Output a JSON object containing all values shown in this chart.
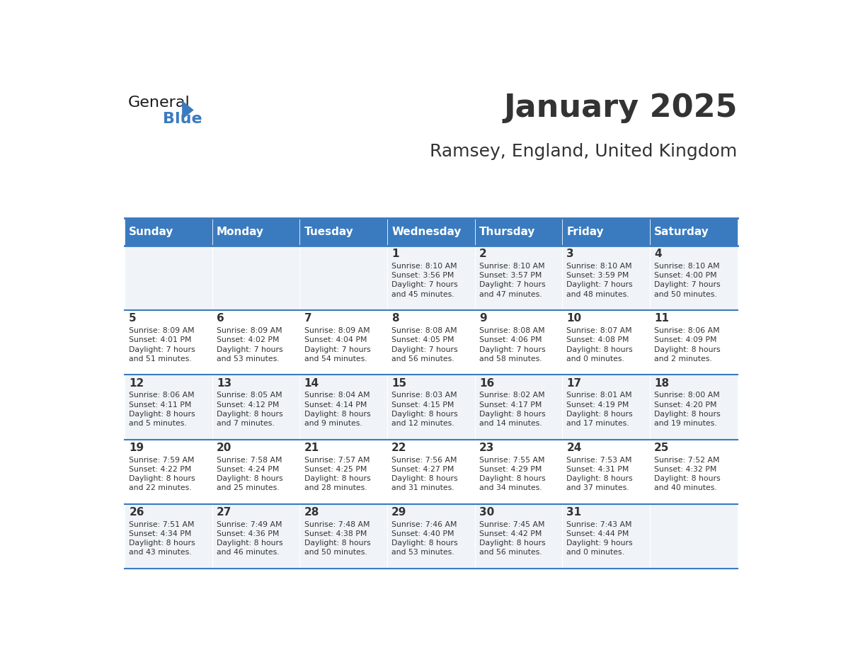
{
  "title": "January 2025",
  "subtitle": "Ramsey, England, United Kingdom",
  "header_color": "#3a7bbf",
  "header_text_color": "#ffffff",
  "cell_bg_color": "#f0f4f8",
  "alt_cell_bg_color": "#ffffff",
  "border_color": "#3a7bbf",
  "text_color": "#333333",
  "days_of_week": [
    "Sunday",
    "Monday",
    "Tuesday",
    "Wednesday",
    "Thursday",
    "Friday",
    "Saturday"
  ],
  "calendar_data": [
    [
      {
        "day": null,
        "info": null
      },
      {
        "day": null,
        "info": null
      },
      {
        "day": null,
        "info": null
      },
      {
        "day": "1",
        "info": "Sunrise: 8:10 AM\nSunset: 3:56 PM\nDaylight: 7 hours\nand 45 minutes."
      },
      {
        "day": "2",
        "info": "Sunrise: 8:10 AM\nSunset: 3:57 PM\nDaylight: 7 hours\nand 47 minutes."
      },
      {
        "day": "3",
        "info": "Sunrise: 8:10 AM\nSunset: 3:59 PM\nDaylight: 7 hours\nand 48 minutes."
      },
      {
        "day": "4",
        "info": "Sunrise: 8:10 AM\nSunset: 4:00 PM\nDaylight: 7 hours\nand 50 minutes."
      }
    ],
    [
      {
        "day": "5",
        "info": "Sunrise: 8:09 AM\nSunset: 4:01 PM\nDaylight: 7 hours\nand 51 minutes."
      },
      {
        "day": "6",
        "info": "Sunrise: 8:09 AM\nSunset: 4:02 PM\nDaylight: 7 hours\nand 53 minutes."
      },
      {
        "day": "7",
        "info": "Sunrise: 8:09 AM\nSunset: 4:04 PM\nDaylight: 7 hours\nand 54 minutes."
      },
      {
        "day": "8",
        "info": "Sunrise: 8:08 AM\nSunset: 4:05 PM\nDaylight: 7 hours\nand 56 minutes."
      },
      {
        "day": "9",
        "info": "Sunrise: 8:08 AM\nSunset: 4:06 PM\nDaylight: 7 hours\nand 58 minutes."
      },
      {
        "day": "10",
        "info": "Sunrise: 8:07 AM\nSunset: 4:08 PM\nDaylight: 8 hours\nand 0 minutes."
      },
      {
        "day": "11",
        "info": "Sunrise: 8:06 AM\nSunset: 4:09 PM\nDaylight: 8 hours\nand 2 minutes."
      }
    ],
    [
      {
        "day": "12",
        "info": "Sunrise: 8:06 AM\nSunset: 4:11 PM\nDaylight: 8 hours\nand 5 minutes."
      },
      {
        "day": "13",
        "info": "Sunrise: 8:05 AM\nSunset: 4:12 PM\nDaylight: 8 hours\nand 7 minutes."
      },
      {
        "day": "14",
        "info": "Sunrise: 8:04 AM\nSunset: 4:14 PM\nDaylight: 8 hours\nand 9 minutes."
      },
      {
        "day": "15",
        "info": "Sunrise: 8:03 AM\nSunset: 4:15 PM\nDaylight: 8 hours\nand 12 minutes."
      },
      {
        "day": "16",
        "info": "Sunrise: 8:02 AM\nSunset: 4:17 PM\nDaylight: 8 hours\nand 14 minutes."
      },
      {
        "day": "17",
        "info": "Sunrise: 8:01 AM\nSunset: 4:19 PM\nDaylight: 8 hours\nand 17 minutes."
      },
      {
        "day": "18",
        "info": "Sunrise: 8:00 AM\nSunset: 4:20 PM\nDaylight: 8 hours\nand 19 minutes."
      }
    ],
    [
      {
        "day": "19",
        "info": "Sunrise: 7:59 AM\nSunset: 4:22 PM\nDaylight: 8 hours\nand 22 minutes."
      },
      {
        "day": "20",
        "info": "Sunrise: 7:58 AM\nSunset: 4:24 PM\nDaylight: 8 hours\nand 25 minutes."
      },
      {
        "day": "21",
        "info": "Sunrise: 7:57 AM\nSunset: 4:25 PM\nDaylight: 8 hours\nand 28 minutes."
      },
      {
        "day": "22",
        "info": "Sunrise: 7:56 AM\nSunset: 4:27 PM\nDaylight: 8 hours\nand 31 minutes."
      },
      {
        "day": "23",
        "info": "Sunrise: 7:55 AM\nSunset: 4:29 PM\nDaylight: 8 hours\nand 34 minutes."
      },
      {
        "day": "24",
        "info": "Sunrise: 7:53 AM\nSunset: 4:31 PM\nDaylight: 8 hours\nand 37 minutes."
      },
      {
        "day": "25",
        "info": "Sunrise: 7:52 AM\nSunset: 4:32 PM\nDaylight: 8 hours\nand 40 minutes."
      }
    ],
    [
      {
        "day": "26",
        "info": "Sunrise: 7:51 AM\nSunset: 4:34 PM\nDaylight: 8 hours\nand 43 minutes."
      },
      {
        "day": "27",
        "info": "Sunrise: 7:49 AM\nSunset: 4:36 PM\nDaylight: 8 hours\nand 46 minutes."
      },
      {
        "day": "28",
        "info": "Sunrise: 7:48 AM\nSunset: 4:38 PM\nDaylight: 8 hours\nand 50 minutes."
      },
      {
        "day": "29",
        "info": "Sunrise: 7:46 AM\nSunset: 4:40 PM\nDaylight: 8 hours\nand 53 minutes."
      },
      {
        "day": "30",
        "info": "Sunrise: 7:45 AM\nSunset: 4:42 PM\nDaylight: 8 hours\nand 56 minutes."
      },
      {
        "day": "31",
        "info": "Sunrise: 7:43 AM\nSunset: 4:44 PM\nDaylight: 9 hours\nand 0 minutes."
      },
      {
        "day": null,
        "info": null
      }
    ]
  ],
  "logo_text_general": "General",
  "logo_text_blue": "Blue",
  "logo_color_general": "#1a1a1a",
  "logo_color_blue": "#3a7bbf"
}
